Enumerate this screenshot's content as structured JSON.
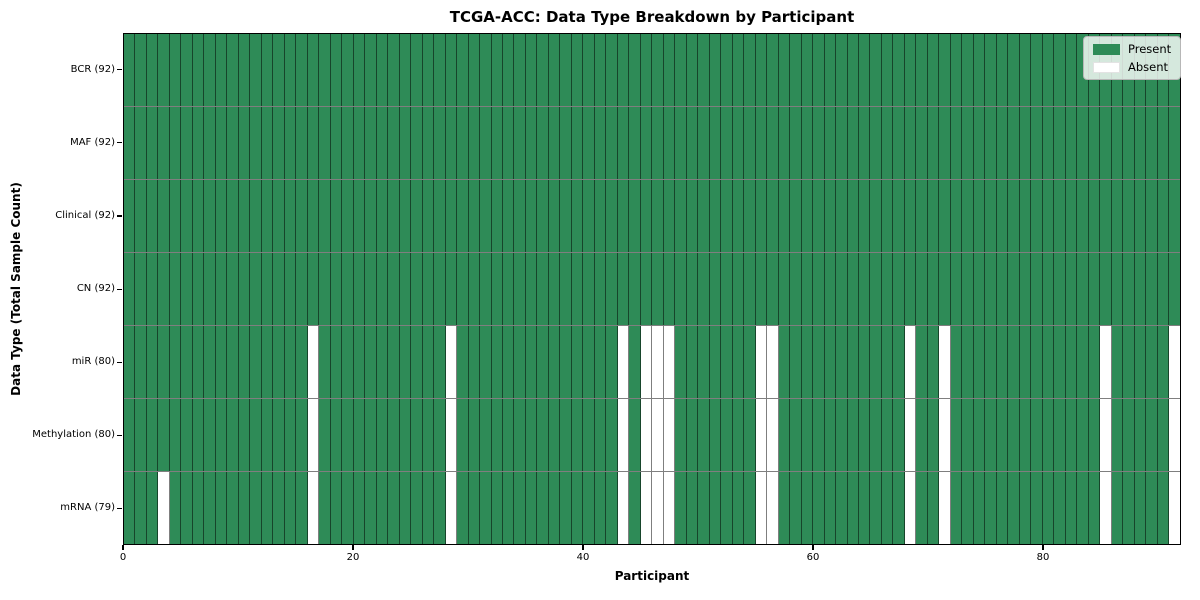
{
  "chart_data": {
    "type": "heatmap",
    "title": "TCGA-ACC: Data Type Breakdown by Participant",
    "xlabel": "Participant",
    "ylabel": "Data Type (Total Sample Count)",
    "n_participants": 92,
    "x_ticks": [
      0,
      20,
      40,
      60,
      80
    ],
    "colors": {
      "present": "#2e8b57",
      "absent": "#ffffff"
    },
    "legend": {
      "position": "upper-right",
      "entries": [
        {
          "label": "Present",
          "key": "present"
        },
        {
          "label": "Absent",
          "key": "absent"
        }
      ]
    },
    "rows": [
      {
        "label": "BCR (92)",
        "data_type": "BCR",
        "present_count": 92,
        "absent_participants": []
      },
      {
        "label": "MAF (92)",
        "data_type": "MAF",
        "present_count": 92,
        "absent_participants": []
      },
      {
        "label": "Clinical (92)",
        "data_type": "Clinical",
        "present_count": 92,
        "absent_participants": []
      },
      {
        "label": "CN (92)",
        "data_type": "CN",
        "present_count": 92,
        "absent_participants": []
      },
      {
        "label": "miR (80)",
        "data_type": "miR",
        "present_count": 80,
        "absent_participants": [
          16,
          28,
          43,
          45,
          46,
          47,
          55,
          56,
          68,
          71,
          85,
          91
        ]
      },
      {
        "label": "Methylation (80)",
        "data_type": "Methylation",
        "present_count": 80,
        "absent_participants": [
          16,
          28,
          43,
          45,
          46,
          47,
          55,
          56,
          68,
          71,
          85,
          91
        ]
      },
      {
        "label": "mRNA (79)",
        "data_type": "mRNA",
        "present_count": 79,
        "absent_participants": [
          3,
          16,
          28,
          43,
          45,
          46,
          47,
          55,
          56,
          68,
          71,
          85,
          91
        ]
      }
    ]
  }
}
